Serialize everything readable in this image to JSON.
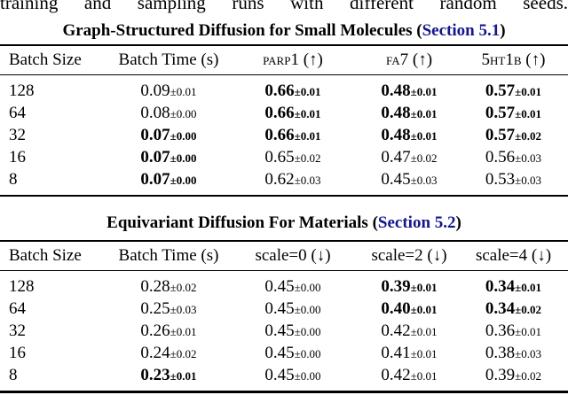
{
  "page": {
    "top_text_cropped": "training and sampling runs with different random seeds."
  },
  "colors": {
    "section_link": "#15158e",
    "rule": "#000000",
    "background": "#ffffff"
  },
  "tables": [
    {
      "title_prefix": "Graph-Structured Diffusion for Small Molecules (",
      "title_link": "Section 5.1",
      "title_suffix": ")",
      "headers": [
        {
          "label": "Batch Size",
          "sc": false,
          "suffix": ""
        },
        {
          "label": "Batch Time (s)",
          "sc": false,
          "suffix": ""
        },
        {
          "label": "parp1",
          "sc": true,
          "suffix": " (↑)"
        },
        {
          "label": "fa7",
          "sc": true,
          "suffix": " (↑)"
        },
        {
          "label": "5ht1b",
          "sc": true,
          "suffix": " (↑)"
        }
      ],
      "rows": [
        {
          "batch_size": "128",
          "cells": [
            {
              "v": "0.09",
              "pm": "±0.01",
              "b": false
            },
            {
              "v": "0.66",
              "pm": "±0.01",
              "b": true
            },
            {
              "v": "0.48",
              "pm": "±0.01",
              "b": true
            },
            {
              "v": "0.57",
              "pm": "±0.01",
              "b": true
            }
          ]
        },
        {
          "batch_size": "64",
          "cells": [
            {
              "v": "0.08",
              "pm": "±0.00",
              "b": false
            },
            {
              "v": "0.66",
              "pm": "±0.01",
              "b": true
            },
            {
              "v": "0.48",
              "pm": "±0.01",
              "b": true
            },
            {
              "v": "0.57",
              "pm": "±0.01",
              "b": true
            }
          ]
        },
        {
          "batch_size": "32",
          "cells": [
            {
              "v": "0.07",
              "pm": "±0.00",
              "b": true
            },
            {
              "v": "0.66",
              "pm": "±0.01",
              "b": true
            },
            {
              "v": "0.48",
              "pm": "±0.01",
              "b": true
            },
            {
              "v": "0.57",
              "pm": "±0.02",
              "b": true
            }
          ]
        },
        {
          "batch_size": "16",
          "cells": [
            {
              "v": "0.07",
              "pm": "±0.00",
              "b": true
            },
            {
              "v": "0.65",
              "pm": "±0.02",
              "b": false
            },
            {
              "v": "0.47",
              "pm": "±0.02",
              "b": false
            },
            {
              "v": "0.56",
              "pm": "±0.03",
              "b": false
            }
          ]
        },
        {
          "batch_size": "8",
          "cells": [
            {
              "v": "0.07",
              "pm": "±0.00",
              "b": true
            },
            {
              "v": "0.62",
              "pm": "±0.03",
              "b": false
            },
            {
              "v": "0.45",
              "pm": "±0.03",
              "b": false
            },
            {
              "v": "0.53",
              "pm": "±0.03",
              "b": false
            }
          ]
        }
      ]
    },
    {
      "title_prefix": "Equivariant Diffusion For Materials (",
      "title_link": "Section 5.2",
      "title_suffix": ")",
      "headers": [
        {
          "label": "Batch Size",
          "sc": false,
          "suffix": ""
        },
        {
          "label": "Batch Time (s)",
          "sc": false,
          "suffix": ""
        },
        {
          "label": "scale=0",
          "sc": false,
          "suffix": " (↓)"
        },
        {
          "label": "scale=2",
          "sc": false,
          "suffix": " (↓)"
        },
        {
          "label": "scale=4",
          "sc": false,
          "suffix": " (↓)"
        }
      ],
      "rows": [
        {
          "batch_size": "128",
          "cells": [
            {
              "v": "0.28",
              "pm": "±0.02",
              "b": false
            },
            {
              "v": "0.45",
              "pm": "±0.00",
              "b": false
            },
            {
              "v": "0.39",
              "pm": "±0.01",
              "b": true
            },
            {
              "v": "0.34",
              "pm": "±0.01",
              "b": true
            }
          ]
        },
        {
          "batch_size": "64",
          "cells": [
            {
              "v": "0.25",
              "pm": "±0.03",
              "b": false
            },
            {
              "v": "0.45",
              "pm": "±0.00",
              "b": false
            },
            {
              "v": "0.40",
              "pm": "±0.01",
              "b": true
            },
            {
              "v": "0.34",
              "pm": "±0.02",
              "b": true
            }
          ]
        },
        {
          "batch_size": "32",
          "cells": [
            {
              "v": "0.26",
              "pm": "±0.01",
              "b": false
            },
            {
              "v": "0.45",
              "pm": "±0.00",
              "b": false
            },
            {
              "v": "0.42",
              "pm": "±0.01",
              "b": false
            },
            {
              "v": "0.36",
              "pm": "±0.01",
              "b": false
            }
          ]
        },
        {
          "batch_size": "16",
          "cells": [
            {
              "v": "0.24",
              "pm": "±0.02",
              "b": false
            },
            {
              "v": "0.45",
              "pm": "±0.00",
              "b": false
            },
            {
              "v": "0.41",
              "pm": "±0.01",
              "b": false
            },
            {
              "v": "0.38",
              "pm": "±0.03",
              "b": false
            }
          ]
        },
        {
          "batch_size": "8",
          "cells": [
            {
              "v": "0.23",
              "pm": "±0.01",
              "b": true
            },
            {
              "v": "0.45",
              "pm": "±0.00",
              "b": false
            },
            {
              "v": "0.42",
              "pm": "±0.01",
              "b": false
            },
            {
              "v": "0.39",
              "pm": "±0.02",
              "b": false
            }
          ]
        }
      ]
    }
  ]
}
